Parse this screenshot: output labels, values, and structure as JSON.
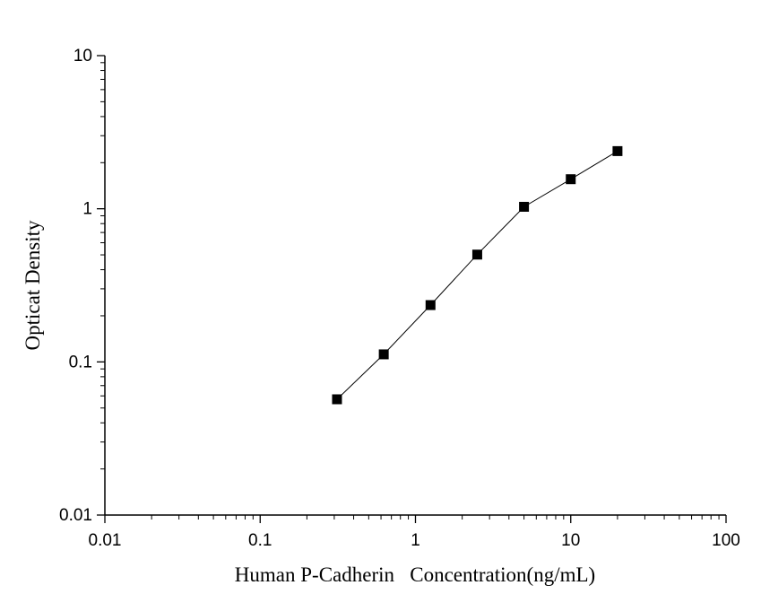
{
  "chart_data": {
    "type": "scatter",
    "x_scale": "log",
    "y_scale": "log",
    "xlim": [
      0.01,
      100
    ],
    "ylim": [
      0.01,
      10
    ],
    "xlabel": "Human P-Cadherin   Concentration(ng/mL)",
    "ylabel": "Opticat Density",
    "x_ticks": [
      "0.01",
      "0.1",
      "1",
      "10",
      "100"
    ],
    "y_ticks": [
      "0.01",
      "0.1",
      "1",
      "10"
    ],
    "grid": false,
    "legend": "none",
    "marker": "square",
    "connected_line": true,
    "color": "#000000",
    "series": [
      {
        "x": [
          0.3125,
          0.625,
          1.25,
          2.5,
          5,
          10,
          20
        ],
        "y": [
          0.057,
          0.112,
          0.235,
          0.502,
          1.03,
          1.56,
          2.38
        ]
      }
    ]
  }
}
